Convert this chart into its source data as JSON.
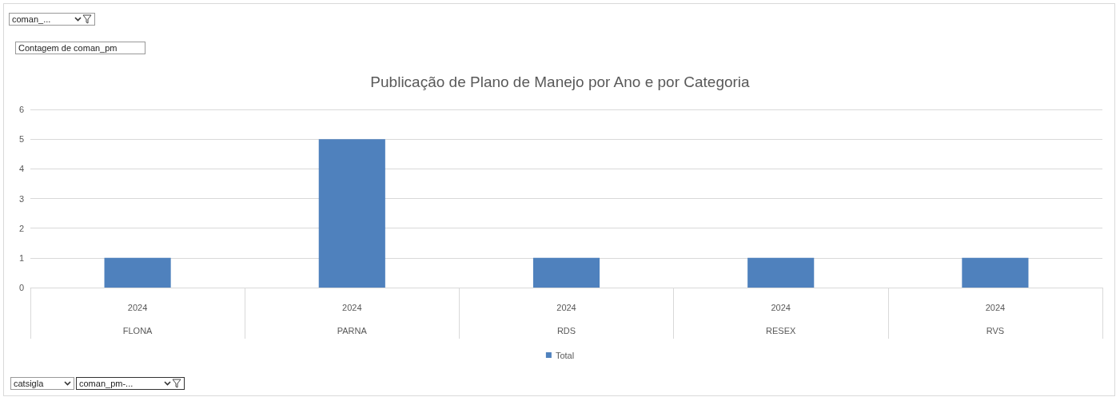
{
  "chart_data": {
    "type": "bar",
    "title": "Publicação de Plano de Manejo por Ano e por Categoria",
    "categories": [
      "2024\nFLONA",
      "2024\nPARNA",
      "2024\nRDS",
      "2024\nRESEX",
      "2024\nRVS"
    ],
    "series": [
      {
        "name": "Total",
        "color": "#4f81bd",
        "values": [
          1,
          5,
          1,
          1,
          1
        ]
      }
    ],
    "ylim": [
      0,
      6
    ],
    "yticks": [
      0,
      1,
      2,
      3,
      4,
      5,
      6
    ],
    "grid": "y",
    "legend": "bottom",
    "annotations": [
      "coman_...",
      "Contagem de coman_pm",
      "catsigla",
      "coman_pm-..."
    ]
  }
}
